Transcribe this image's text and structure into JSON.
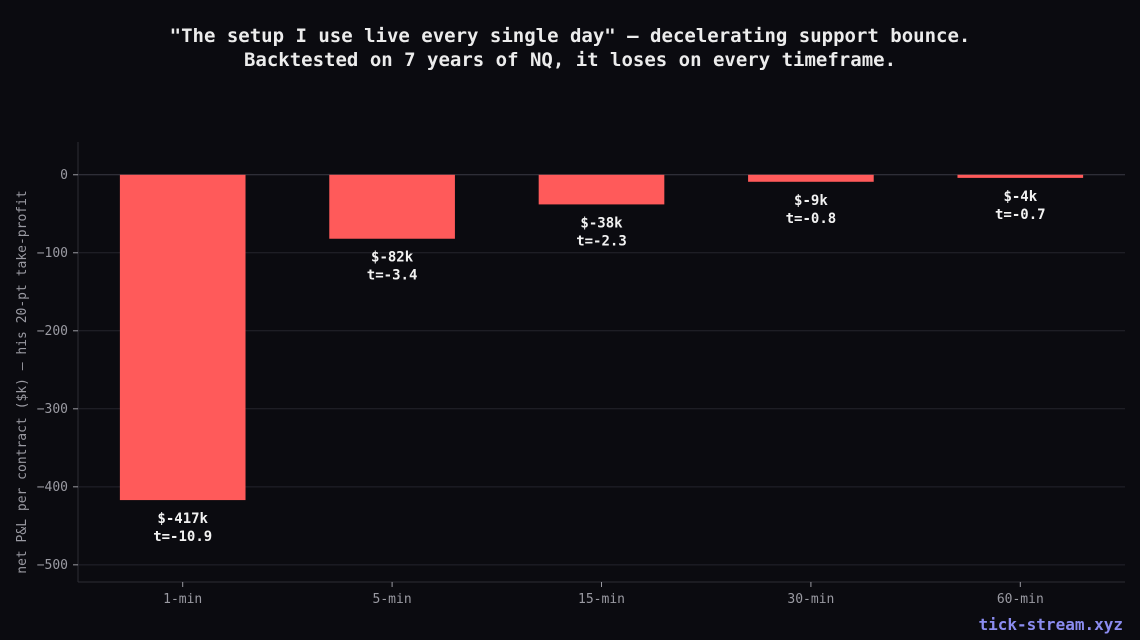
{
  "chart_data": {
    "type": "bar",
    "title": [
      "\"The setup I use live every single day\" — decelerating support bounce.",
      "Backtested on 7 years of NQ, it loses on every timeframe."
    ],
    "ylabel": "net P&L per contract ($k) — his 20-pt take-profit",
    "xlabel": "",
    "categories": [
      "1-min",
      "5-min",
      "15-min",
      "30-min",
      "60-min"
    ],
    "values": [
      -417,
      -82,
      -38,
      -9,
      -4
    ],
    "bar_labels": [
      "$-417k",
      "$-82k",
      "$-38k",
      "$-9k",
      "$-4k"
    ],
    "t_stats": [
      "t=-10.9",
      "t=-3.4",
      "t=-2.3",
      "t=-0.8",
      "t=-0.7"
    ],
    "ylim": [
      -522,
      42
    ],
    "yticks": [
      0,
      -100,
      -200,
      -300,
      -400,
      -500
    ],
    "ytick_labels": [
      "0",
      "−100",
      "−200",
      "−300",
      "−400",
      "−500"
    ],
    "grid": true,
    "colors": {
      "bar": "#ff5a5a",
      "background": "#0b0b10",
      "grid": "#24242c",
      "axis_text": "#9a9aa2",
      "label_text": "#f2f2f2"
    }
  },
  "watermark": "tick-stream.xyz"
}
